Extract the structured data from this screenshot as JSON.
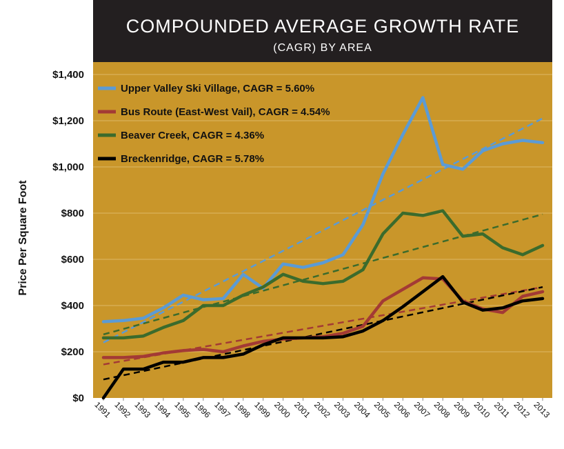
{
  "chart_data": {
    "type": "line",
    "title": "COMPOUNDED AVERAGE GROWTH RATE",
    "subtitle": "(CAGR) BY AREA",
    "ylabel": "Price Per Square Foot",
    "xlabel": "",
    "x": [
      "1991",
      "1992",
      "1993",
      "1994",
      "1995",
      "1996",
      "1997",
      "1998",
      "1999",
      "2000",
      "2001",
      "2002",
      "2003",
      "2004",
      "2005",
      "2006",
      "2007",
      "2008",
      "2009",
      "2010",
      "2011",
      "2012",
      "2013"
    ],
    "ylim": [
      0,
      1400
    ],
    "yticks": [
      0,
      200,
      400,
      600,
      800,
      1000,
      1200,
      1400
    ],
    "ytick_labels": [
      "$0",
      "$200",
      "$400",
      "$600",
      "$800",
      "$1,000",
      "$1,200",
      "$1,400"
    ],
    "grid": "horizontal",
    "legend_position": "top-left",
    "colors": {
      "title_bar": "#231f20",
      "plot_bg": "#c9962a",
      "gridline": "#ddb866"
    },
    "series": [
      {
        "name": "Upper Valley Ski Village, CAGR = 5.60%",
        "color": "#5b9bd5",
        "values": [
          330,
          335,
          345,
          390,
          445,
          425,
          430,
          535,
          475,
          580,
          565,
          585,
          620,
          750,
          970,
          1140,
          1300,
          1010,
          990,
          1070,
          1100,
          1115,
          1105
        ],
        "trend": [
          240,
          1210
        ]
      },
      {
        "name": "Bus Route (East-West Vail), CAGR = 4.54%",
        "color": "#a33a35",
        "values": [
          175,
          175,
          180,
          195,
          205,
          210,
          200,
          225,
          245,
          255,
          260,
          265,
          280,
          310,
          420,
          470,
          520,
          515,
          420,
          385,
          370,
          440,
          460
        ],
        "trend": [
          145,
          480
        ]
      },
      {
        "name": "Beaver Creek, CAGR = 4.36%",
        "color": "#3b6b2c",
        "values": [
          260,
          260,
          268,
          305,
          335,
          400,
          400,
          445,
          480,
          535,
          505,
          495,
          505,
          555,
          710,
          800,
          790,
          810,
          700,
          710,
          650,
          620,
          660
        ],
        "trend": [
          275,
          795
        ]
      },
      {
        "name": "Breckenridge, CAGR = 5.78%",
        "color": "#000000",
        "values": [
          0,
          125,
          125,
          155,
          155,
          175,
          175,
          190,
          230,
          260,
          260,
          260,
          265,
          290,
          335,
          395,
          460,
          525,
          415,
          380,
          390,
          420,
          430
        ],
        "trend": [
          80,
          480
        ]
      }
    ]
  }
}
